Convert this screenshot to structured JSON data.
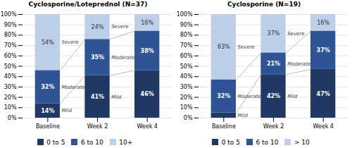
{
  "chart_data": [
    {
      "type": "bar",
      "stacked": true,
      "title": "Cyclosporine/Loteprednol (N=37)",
      "categories": [
        "Baseline",
        "Week 2",
        "Week 4"
      ],
      "series": [
        {
          "name": "0 to 5",
          "color": "#1F3864",
          "values": [
            14,
            41,
            46
          ],
          "value_labels": [
            "14%",
            "41%",
            "46%"
          ]
        },
        {
          "name": "6 to 10",
          "color": "#2F5496",
          "values": [
            32,
            35,
            38
          ],
          "value_labels": [
            "32%",
            "35%",
            "38%"
          ]
        },
        {
          "name": "10+",
          "color": "#BDD0E9",
          "values": [
            54,
            24,
            16
          ],
          "value_labels": [
            "54%",
            "24%",
            "16%"
          ]
        }
      ],
      "annotations": [
        {
          "text": "Mild",
          "x": "Baseline",
          "series": "0 to 5"
        },
        {
          "text": "Mild",
          "x": "Week 2",
          "series": "0 to 5"
        },
        {
          "text": "Moderate",
          "x": "Baseline",
          "series": "6 to 10"
        },
        {
          "text": "Moderate",
          "x": "Week 2",
          "series": "6 to 10"
        },
        {
          "text": "Severe",
          "x": "Baseline",
          "series": "10+"
        },
        {
          "text": "Severe",
          "x": "Week 2",
          "series": "10+"
        }
      ],
      "ylim": [
        0,
        100
      ],
      "yticks": [
        {
          "value": 0,
          "label": "0%"
        },
        {
          "value": 10,
          "label": "10%"
        },
        {
          "value": 20,
          "label": "20%"
        },
        {
          "value": 30,
          "label": "30%"
        },
        {
          "value": 40,
          "label": "40%"
        },
        {
          "value": 50,
          "label": "50%"
        },
        {
          "value": 60,
          "label": "60%"
        },
        {
          "value": 70,
          "label": "70%"
        },
        {
          "value": 80,
          "label": "80%"
        },
        {
          "value": 90,
          "label": "90%"
        },
        {
          "value": 100,
          "label": "100%"
        }
      ],
      "grid": true,
      "data_labels": true,
      "legend": "bottom"
    },
    {
      "type": "bar",
      "stacked": true,
      "title": "Cyclosporine (N=19)",
      "categories": [
        "Baseline",
        "Week 2",
        "Week 4"
      ],
      "series": [
        {
          "name": "0 to 5",
          "color": "#1F3864",
          "values": [
            5,
            42,
            47
          ],
          "value_labels": [
            null,
            "42%",
            "47%"
          ]
        },
        {
          "name": "6 to 10",
          "color": "#2F5496",
          "values": [
            32,
            21,
            37
          ],
          "value_labels": [
            "32%",
            "21%",
            "37%"
          ]
        },
        {
          "name": "> 10",
          "color": "#BDD0E9",
          "values": [
            63,
            37,
            16
          ],
          "value_labels": [
            "63%",
            "37%",
            "16%"
          ]
        }
      ],
      "annotations": [
        {
          "text": "Mild",
          "x": "Baseline",
          "series": "0 to 5"
        },
        {
          "text": "Mild",
          "x": "Week 2",
          "series": "0 to 5"
        },
        {
          "text": "Moderate",
          "x": "Baseline",
          "series": "6 to 10"
        },
        {
          "text": "Moderate",
          "x": "Week 2",
          "series": "6 to 10"
        },
        {
          "text": "Severe",
          "x": "Baseline",
          "series": "> 10"
        },
        {
          "text": "Severe",
          "x": "Week 2",
          "series": "> 10"
        }
      ],
      "ylim": [
        0,
        100
      ],
      "yticks": [
        {
          "value": 0,
          "label": "0%"
        },
        {
          "value": 10,
          "label": "10%"
        },
        {
          "value": 20,
          "label": "20%"
        },
        {
          "value": 30,
          "label": "30%"
        },
        {
          "value": 40,
          "label": "40%"
        },
        {
          "value": 50,
          "label": "50%"
        },
        {
          "value": 60,
          "label": "60%"
        },
        {
          "value": 70,
          "label": "70%"
        },
        {
          "value": 80,
          "label": "80%"
        },
        {
          "value": 90,
          "label": "90%"
        },
        {
          "value": 100,
          "label": "100%"
        }
      ],
      "grid": true,
      "data_labels": true,
      "legend": "bottom"
    }
  ]
}
